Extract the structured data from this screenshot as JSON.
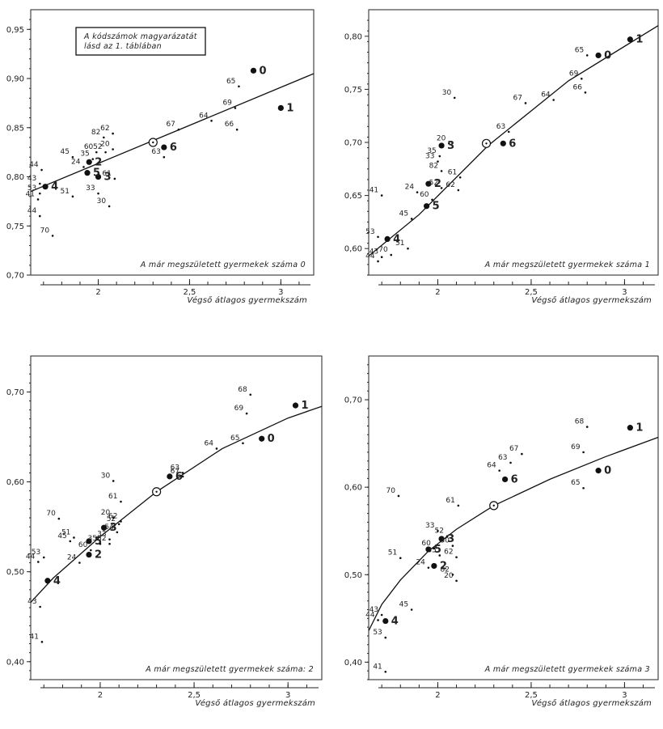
{
  "chart_data": [
    {
      "type": "scatter",
      "ylim": [
        0.7,
        0.97
      ],
      "xlim": [
        1.63,
        3.18
      ],
      "yticks": [
        "0,95",
        "0,90",
        "0,85",
        "0,80",
        "0,75",
        "0,70"
      ],
      "yticks_values": [
        0.95,
        0.9,
        0.85,
        0.8,
        0.75,
        0.7
      ],
      "xticks": [
        "2",
        "2,5",
        "3"
      ],
      "xticks_values": [
        2.0,
        2.5,
        3.0
      ],
      "xlabel": "Végső átlagos gyermekszám",
      "annotation": "A már megszületett gyermekek száma 0",
      "legend_box": [
        "A kódszámok magyarázatát",
        "lásd az 1. táblában"
      ],
      "fit_line": [
        [
          1.63,
          0.785
        ],
        [
          3.18,
          0.905
        ]
      ],
      "reference_point": [
        2.3,
        0.835
      ],
      "points": [
        {
          "code": "0",
          "x": 2.85,
          "y": 0.908,
          "big": true
        },
        {
          "code": "1",
          "x": 3.0,
          "y": 0.87,
          "big": true
        },
        {
          "code": "2",
          "x": 1.95,
          "y": 0.815,
          "big": true
        },
        {
          "code": "3",
          "x": 2.0,
          "y": 0.8,
          "big": true
        },
        {
          "code": "4",
          "x": 1.71,
          "y": 0.79,
          "big": true
        },
        {
          "code": "5",
          "x": 1.94,
          "y": 0.804,
          "big": true
        },
        {
          "code": "6",
          "x": 2.36,
          "y": 0.83,
          "big": true
        },
        {
          "code": "24",
          "x": 1.92,
          "y": 0.81
        },
        {
          "code": "30",
          "x": 2.06,
          "y": 0.77
        },
        {
          "code": "33",
          "x": 2.0,
          "y": 0.783
        },
        {
          "code": "35",
          "x": 1.97,
          "y": 0.818
        },
        {
          "code": "41",
          "x": 1.67,
          "y": 0.777
        },
        {
          "code": "43",
          "x": 1.68,
          "y": 0.793
        },
        {
          "code": "44",
          "x": 1.68,
          "y": 0.76
        },
        {
          "code": "44",
          "x": 1.69,
          "y": 0.807
        },
        {
          "code": "45",
          "x": 1.86,
          "y": 0.82
        },
        {
          "code": "51",
          "x": 1.86,
          "y": 0.78
        },
        {
          "code": "52",
          "x": 2.04,
          "y": 0.825
        },
        {
          "code": "53",
          "x": 1.68,
          "y": 0.783
        },
        {
          "code": "60",
          "x": 1.99,
          "y": 0.825
        },
        {
          "code": "61",
          "x": 2.09,
          "y": 0.798
        },
        {
          "code": "62",
          "x": 2.08,
          "y": 0.844
        },
        {
          "code": "63",
          "x": 2.36,
          "y": 0.82
        },
        {
          "code": "64",
          "x": 2.62,
          "y": 0.857
        },
        {
          "code": "65",
          "x": 2.77,
          "y": 0.892
        },
        {
          "code": "66",
          "x": 2.76,
          "y": 0.848
        },
        {
          "code": "67",
          "x": 2.44,
          "y": 0.848
        },
        {
          "code": "69",
          "x": 2.75,
          "y": 0.87
        },
        {
          "code": "70",
          "x": 1.75,
          "y": 0.74
        },
        {
          "code": "82",
          "x": 2.03,
          "y": 0.84
        },
        {
          "code": "20",
          "x": 2.08,
          "y": 0.828
        }
      ]
    },
    {
      "type": "scatter",
      "ylim": [
        0.575,
        0.825
      ],
      "xlim": [
        1.63,
        3.18
      ],
      "yticks": [
        "0,80",
        "0,75",
        "0,70",
        "0,65",
        "0,60"
      ],
      "yticks_values": [
        0.8,
        0.75,
        0.7,
        0.65,
        0.6
      ],
      "xticks": [
        "2",
        "2,5",
        "3"
      ],
      "xticks_values": [
        2.0,
        2.5,
        3.0
      ],
      "xlabel": "Végső átlagos gyermekszám",
      "annotation": "A már megszületett gyermekek száma 1",
      "fit_line": [
        [
          1.63,
          0.593
        ],
        [
          1.9,
          0.632
        ],
        [
          2.27,
          0.697
        ],
        [
          2.7,
          0.758
        ],
        [
          3.18,
          0.81
        ]
      ],
      "reference_point": [
        2.26,
        0.699
      ],
      "points": [
        {
          "code": "0",
          "x": 2.86,
          "y": 0.782,
          "big": true
        },
        {
          "code": "1",
          "x": 3.03,
          "y": 0.797,
          "big": true
        },
        {
          "code": "2",
          "x": 1.95,
          "y": 0.661,
          "big": true
        },
        {
          "code": "3",
          "x": 2.02,
          "y": 0.697,
          "big": true
        },
        {
          "code": "4",
          "x": 1.73,
          "y": 0.609,
          "big": true
        },
        {
          "code": "5",
          "x": 1.94,
          "y": 0.64,
          "big": true
        },
        {
          "code": "6",
          "x": 2.35,
          "y": 0.699,
          "big": true
        },
        {
          "code": "20",
          "x": 2.06,
          "y": 0.699
        },
        {
          "code": "24",
          "x": 1.89,
          "y": 0.653
        },
        {
          "code": "30",
          "x": 2.09,
          "y": 0.742
        },
        {
          "code": "33",
          "x": 2.0,
          "y": 0.682
        },
        {
          "code": "35",
          "x": 2.01,
          "y": 0.687
        },
        {
          "code": "41",
          "x": 1.7,
          "y": 0.65
        },
        {
          "code": "43",
          "x": 1.7,
          "y": 0.592
        },
        {
          "code": "44",
          "x": 1.68,
          "y": 0.588
        },
        {
          "code": "45",
          "x": 1.86,
          "y": 0.628
        },
        {
          "code": "51",
          "x": 1.84,
          "y": 0.6
        },
        {
          "code": "52",
          "x": 2.02,
          "y": 0.657
        },
        {
          "code": "53",
          "x": 1.68,
          "y": 0.611
        },
        {
          "code": "60",
          "x": 1.97,
          "y": 0.646
        },
        {
          "code": "61",
          "x": 2.12,
          "y": 0.667
        },
        {
          "code": "62",
          "x": 2.11,
          "y": 0.655
        },
        {
          "code": "63",
          "x": 2.38,
          "y": 0.71
        },
        {
          "code": "64",
          "x": 2.62,
          "y": 0.74
        },
        {
          "code": "65",
          "x": 2.8,
          "y": 0.782
        },
        {
          "code": "66",
          "x": 2.79,
          "y": 0.747
        },
        {
          "code": "67",
          "x": 2.47,
          "y": 0.737
        },
        {
          "code": "69",
          "x": 2.77,
          "y": 0.76
        },
        {
          "code": "70",
          "x": 1.75,
          "y": 0.594
        },
        {
          "code": "82",
          "x": 2.02,
          "y": 0.673
        }
      ]
    },
    {
      "type": "scatter",
      "ylim": [
        0.38,
        0.74
      ],
      "xlim": [
        1.63,
        3.18
      ],
      "yticks": [
        "0,70",
        "0,60",
        "0,50",
        "0,40"
      ],
      "yticks_values": [
        0.7,
        0.6,
        0.5,
        0.4
      ],
      "xticks": [
        "2",
        "2,5",
        "3"
      ],
      "xticks_values": [
        2.0,
        2.5,
        3.0
      ],
      "xlabel": "Végső átlagos gyermekszám",
      "annotation": "A már megszületett gyermekek száma: 2",
      "fit_line": [
        [
          1.63,
          0.466
        ],
        [
          1.75,
          0.493
        ],
        [
          2.0,
          0.539
        ],
        [
          2.3,
          0.589
        ],
        [
          2.65,
          0.637
        ],
        [
          3.0,
          0.671
        ],
        [
          3.18,
          0.684
        ]
      ],
      "reference_point": [
        2.3,
        0.589
      ],
      "points": [
        {
          "code": "0",
          "x": 2.86,
          "y": 0.648,
          "big": true
        },
        {
          "code": "1",
          "x": 3.04,
          "y": 0.685,
          "big": true
        },
        {
          "code": "2",
          "x": 1.94,
          "y": 0.519,
          "big": true
        },
        {
          "code": "3",
          "x": 2.02,
          "y": 0.549,
          "big": true
        },
        {
          "code": "4",
          "x": 1.72,
          "y": 0.49,
          "big": true
        },
        {
          "code": "5",
          "x": 1.94,
          "y": 0.534,
          "big": true
        },
        {
          "code": "6",
          "x": 2.37,
          "y": 0.606,
          "big": true
        },
        {
          "code": "20",
          "x": 2.07,
          "y": 0.56
        },
        {
          "code": "24",
          "x": 1.89,
          "y": 0.51
        },
        {
          "code": "30",
          "x": 2.07,
          "y": 0.601
        },
        {
          "code": "33",
          "x": 2.05,
          "y": 0.536
        },
        {
          "code": "35",
          "x": 2.0,
          "y": 0.531
        },
        {
          "code": "41",
          "x": 1.69,
          "y": 0.422
        },
        {
          "code": "43",
          "x": 1.68,
          "y": 0.461
        },
        {
          "code": "44",
          "x": 1.67,
          "y": 0.511
        },
        {
          "code": "45",
          "x": 1.84,
          "y": 0.534
        },
        {
          "code": "51",
          "x": 1.86,
          "y": 0.538
        },
        {
          "code": "52",
          "x": 2.1,
          "y": 0.553
        },
        {
          "code": "53",
          "x": 1.7,
          "y": 0.516
        },
        {
          "code": "54",
          "x": 2.09,
          "y": 0.544
        },
        {
          "code": "60",
          "x": 1.95,
          "y": 0.524
        },
        {
          "code": "61",
          "x": 2.11,
          "y": 0.578
        },
        {
          "code": "62",
          "x": 2.11,
          "y": 0.556
        },
        {
          "code": "63",
          "x": 2.44,
          "y": 0.61
        },
        {
          "code": "64",
          "x": 2.62,
          "y": 0.637
        },
        {
          "code": "65",
          "x": 2.76,
          "y": 0.643
        },
        {
          "code": "67",
          "x": 2.44,
          "y": 0.606
        },
        {
          "code": "68",
          "x": 2.8,
          "y": 0.697
        },
        {
          "code": "69",
          "x": 2.78,
          "y": 0.676
        },
        {
          "code": "70",
          "x": 1.78,
          "y": 0.559
        },
        {
          "code": "52",
          "x": 2.05,
          "y": 0.531
        }
      ]
    },
    {
      "type": "scatter",
      "ylim": [
        0.38,
        0.75
      ],
      "xlim": [
        1.63,
        3.18
      ],
      "yticks": [
        "0,70",
        "0,60",
        "0,50",
        "0,40"
      ],
      "yticks_values": [
        0.7,
        0.6,
        0.5,
        0.4
      ],
      "xticks": [
        "2",
        "2,5",
        "3"
      ],
      "xticks_values": [
        2.0,
        2.5,
        3.0
      ],
      "xlabel": "Végső átlagos gyermekszám",
      "annotation": "A már megszületett gyermekek száma 3",
      "fit_line": [
        [
          1.63,
          0.436
        ],
        [
          1.7,
          0.466
        ],
        [
          1.8,
          0.494
        ],
        [
          1.95,
          0.527
        ],
        [
          2.1,
          0.552
        ],
        [
          2.3,
          0.579
        ],
        [
          2.6,
          0.609
        ],
        [
          2.9,
          0.635
        ],
        [
          3.18,
          0.657
        ]
      ],
      "reference_point": [
        2.3,
        0.579
      ],
      "points": [
        {
          "code": "0",
          "x": 2.86,
          "y": 0.619,
          "big": true
        },
        {
          "code": "1",
          "x": 3.03,
          "y": 0.668,
          "big": true
        },
        {
          "code": "2",
          "x": 1.98,
          "y": 0.51,
          "big": true
        },
        {
          "code": "3",
          "x": 2.02,
          "y": 0.541,
          "big": true
        },
        {
          "code": "4",
          "x": 1.72,
          "y": 0.447,
          "big": true
        },
        {
          "code": "5",
          "x": 1.95,
          "y": 0.529,
          "big": true
        },
        {
          "code": "6",
          "x": 2.36,
          "y": 0.609,
          "big": true
        },
        {
          "code": "20",
          "x": 2.1,
          "y": 0.493
        },
        {
          "code": "24",
          "x": 1.95,
          "y": 0.508
        },
        {
          "code": "30",
          "x": 2.08,
          "y": 0.533
        },
        {
          "code": "33",
          "x": 2.0,
          "y": 0.55
        },
        {
          "code": "35",
          "x": 2.01,
          "y": 0.522
        },
        {
          "code": "41",
          "x": 1.72,
          "y": 0.389
        },
        {
          "code": "43",
          "x": 1.7,
          "y": 0.454
        },
        {
          "code": "44",
          "x": 1.68,
          "y": 0.448
        },
        {
          "code": "45",
          "x": 1.86,
          "y": 0.46
        },
        {
          "code": "51",
          "x": 1.8,
          "y": 0.519
        },
        {
          "code": "52",
          "x": 2.05,
          "y": 0.544
        },
        {
          "code": "53",
          "x": 1.72,
          "y": 0.428
        },
        {
          "code": "60",
          "x": 1.98,
          "y": 0.53
        },
        {
          "code": "61",
          "x": 2.11,
          "y": 0.579
        },
        {
          "code": "62",
          "x": 2.1,
          "y": 0.52
        },
        {
          "code": "63",
          "x": 2.39,
          "y": 0.628
        },
        {
          "code": "64",
          "x": 2.33,
          "y": 0.619
        },
        {
          "code": "65",
          "x": 2.78,
          "y": 0.599
        },
        {
          "code": "67",
          "x": 2.45,
          "y": 0.638
        },
        {
          "code": "68",
          "x": 2.8,
          "y": 0.669
        },
        {
          "code": "69",
          "x": 2.78,
          "y": 0.64
        },
        {
          "code": "70",
          "x": 1.79,
          "y": 0.59
        },
        {
          "code": "82",
          "x": 2.08,
          "y": 0.5
        }
      ]
    }
  ]
}
